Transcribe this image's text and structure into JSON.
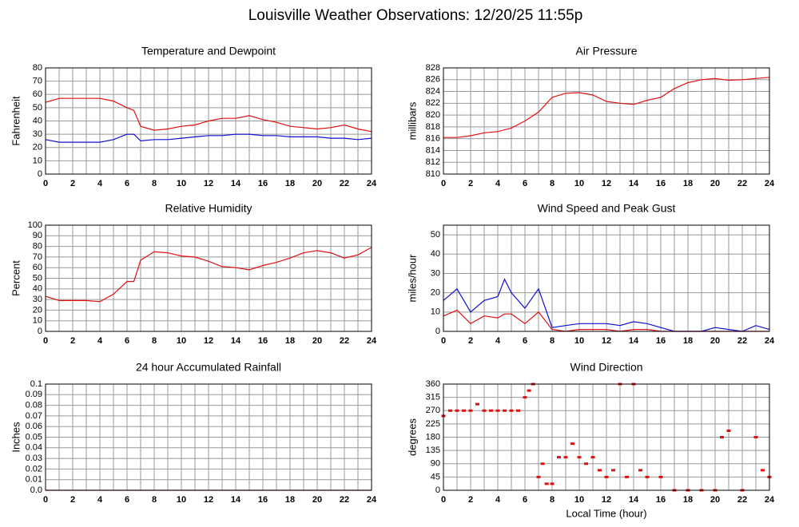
{
  "title": "Louisville Weather Observations: 12/20/25 11:55p",
  "chart_data": [
    {
      "type": "line",
      "title": "Temperature and Dewpoint",
      "ylabel": "Fahrenheit",
      "xlim": [
        0,
        24
      ],
      "xticks": [
        0,
        2,
        4,
        6,
        8,
        10,
        12,
        14,
        16,
        18,
        20,
        22,
        24
      ],
      "x_minor_grid": true,
      "ylim": [
        0,
        80
      ],
      "yticks": [
        0,
        10,
        20,
        30,
        40,
        50,
        60,
        70,
        80
      ],
      "grid": true,
      "x": [
        0,
        1,
        2,
        3,
        4,
        5,
        6,
        6.5,
        7,
        8,
        9,
        10,
        11,
        12,
        13,
        14,
        15,
        16,
        17,
        18,
        19,
        20,
        21,
        22,
        23,
        24
      ],
      "series": [
        {
          "color": "#e01010",
          "values": [
            54,
            57,
            57,
            57,
            57,
            55,
            50,
            48,
            36,
            33,
            34,
            36,
            37,
            40,
            42,
            42,
            44,
            41,
            39,
            36,
            35,
            34,
            35,
            37,
            34,
            32
          ]
        },
        {
          "color": "#1010d0",
          "values": [
            26,
            24,
            24,
            24,
            24,
            26,
            30,
            30,
            25,
            26,
            26,
            27,
            28,
            29,
            29,
            30,
            30,
            29,
            29,
            28,
            28,
            28,
            27,
            27,
            26,
            27
          ]
        }
      ]
    },
    {
      "type": "line",
      "title": "Air Pressure",
      "ylabel": "millibars",
      "xlim": [
        0,
        24
      ],
      "xticks": [
        0,
        2,
        4,
        6,
        8,
        10,
        12,
        14,
        16,
        18,
        20,
        22,
        24
      ],
      "x_minor_grid": true,
      "ylim": [
        810,
        828
      ],
      "yticks": [
        810,
        812,
        814,
        816,
        818,
        820,
        822,
        824,
        826,
        828
      ],
      "grid": true,
      "x": [
        0,
        1,
        2,
        3,
        4,
        5,
        6,
        7,
        8,
        9,
        10,
        11,
        12,
        13,
        14,
        15,
        16,
        17,
        18,
        19,
        20,
        21,
        22,
        23,
        24
      ],
      "series": [
        {
          "color": "#e01010",
          "values": [
            816.2,
            816.2,
            816.5,
            817,
            817.2,
            817.8,
            819,
            820.5,
            823,
            823.7,
            823.8,
            823.4,
            822.3,
            822,
            821.8,
            822.5,
            823,
            824.5,
            825.5,
            826,
            826.2,
            825.9,
            826,
            826.2,
            826.4
          ]
        }
      ]
    },
    {
      "type": "line",
      "title": "Relative Humidity",
      "ylabel": "Percent",
      "xlim": [
        0,
        24
      ],
      "xticks": [
        0,
        2,
        4,
        6,
        8,
        10,
        12,
        14,
        16,
        18,
        20,
        22,
        24
      ],
      "x_minor_grid": true,
      "ylim": [
        0,
        100
      ],
      "yticks": [
        0,
        10,
        20,
        30,
        40,
        50,
        60,
        70,
        80,
        90,
        100
      ],
      "grid": true,
      "x": [
        0,
        1,
        2,
        3,
        4,
        5,
        6,
        6.5,
        7,
        8,
        9,
        10,
        11,
        12,
        13,
        14,
        15,
        16,
        17,
        18,
        19,
        20,
        21,
        22,
        23,
        24
      ],
      "series": [
        {
          "color": "#e01010",
          "values": [
            33,
            29,
            29,
            29,
            28,
            35,
            47,
            47,
            67,
            75,
            74,
            71,
            70,
            66,
            61,
            60,
            58,
            62,
            65,
            69,
            74,
            76,
            74,
            69,
            72,
            79
          ]
        }
      ]
    },
    {
      "type": "line",
      "title": "Wind Speed and Peak Gust",
      "ylabel": "miles/hour",
      "xlim": [
        0,
        24
      ],
      "xticks": [
        0,
        2,
        4,
        6,
        8,
        10,
        12,
        14,
        16,
        18,
        20,
        22,
        24
      ],
      "x_minor_grid": true,
      "ylim": [
        0,
        55
      ],
      "yticks": [
        0,
        10,
        20,
        30,
        40,
        50
      ],
      "grid": true,
      "x": [
        0,
        1,
        2,
        3,
        4,
        4.5,
        5,
        6,
        7,
        8,
        9,
        10,
        11,
        12,
        13,
        14,
        15,
        16,
        17,
        18,
        19,
        20,
        21,
        22,
        23,
        24
      ],
      "series": [
        {
          "color": "#1010d0",
          "values": [
            16,
            22,
            10,
            16,
            18,
            27,
            20,
            12,
            22,
            2,
            3,
            4,
            4,
            4,
            3,
            5,
            4,
            2,
            0,
            0,
            0,
            2,
            1,
            0,
            3,
            1
          ]
        },
        {
          "color": "#e01010",
          "values": [
            8,
            11,
            4,
            8,
            7,
            9,
            9,
            4,
            10,
            1,
            0,
            1,
            1,
            1,
            0,
            1,
            1,
            0,
            0,
            0,
            0,
            0,
            0,
            0,
            0,
            0
          ]
        }
      ]
    },
    {
      "type": "line",
      "title": "24 hour Accumulated Rainfall",
      "ylabel": "Inches",
      "xlim": [
        0,
        24
      ],
      "xticks": [
        0,
        2,
        4,
        6,
        8,
        10,
        12,
        14,
        16,
        18,
        20,
        22,
        24
      ],
      "x_minor_grid": true,
      "ylim": [
        0,
        0.1
      ],
      "yticks": [
        {
          "value": 0,
          "label": "0.0"
        },
        0.01,
        0.02,
        0.03,
        0.04,
        0.05,
        0.06,
        0.07,
        0.08,
        0.09,
        0.1
      ],
      "grid": true,
      "x": [
        0,
        24
      ],
      "series": [
        {
          "color": "#e01010",
          "values": [
            0,
            0
          ]
        }
      ]
    },
    {
      "type": "scatter",
      "title": "Wind Direction",
      "ylabel": "degrees",
      "xlabel": "Local Time (hour)",
      "xlim": [
        0,
        24
      ],
      "xticks": [
        0,
        2,
        4,
        6,
        8,
        10,
        12,
        14,
        16,
        18,
        20,
        22,
        24
      ],
      "x_minor_grid": true,
      "ylim": [
        0,
        360
      ],
      "yticks": [
        0,
        45,
        90,
        135,
        180,
        225,
        270,
        315,
        360
      ],
      "grid": true,
      "x": [
        0,
        0.5,
        1,
        1.5,
        2,
        2.5,
        3,
        3.5,
        4,
        4.5,
        5,
        5.5,
        6,
        6.3,
        6.6,
        7,
        7.3,
        7.6,
        8,
        8.5,
        9,
        9.5,
        10,
        10.5,
        11,
        11.5,
        12,
        12.5,
        13,
        13.5,
        14,
        14.5,
        15,
        16,
        17,
        18,
        19,
        20,
        20.5,
        21,
        22,
        23,
        23.5,
        24
      ],
      "series": [
        {
          "color": "#e01010",
          "values": [
            252,
            270,
            270,
            270,
            270,
            292,
            270,
            270,
            270,
            270,
            270,
            270,
            315,
            338,
            360,
            45,
            90,
            22,
            22,
            112,
            112,
            158,
            112,
            90,
            112,
            68,
            45,
            68,
            360,
            45,
            360,
            68,
            45,
            45,
            0,
            0,
            0,
            0,
            180,
            202,
            0,
            180,
            68,
            45
          ]
        }
      ]
    }
  ]
}
